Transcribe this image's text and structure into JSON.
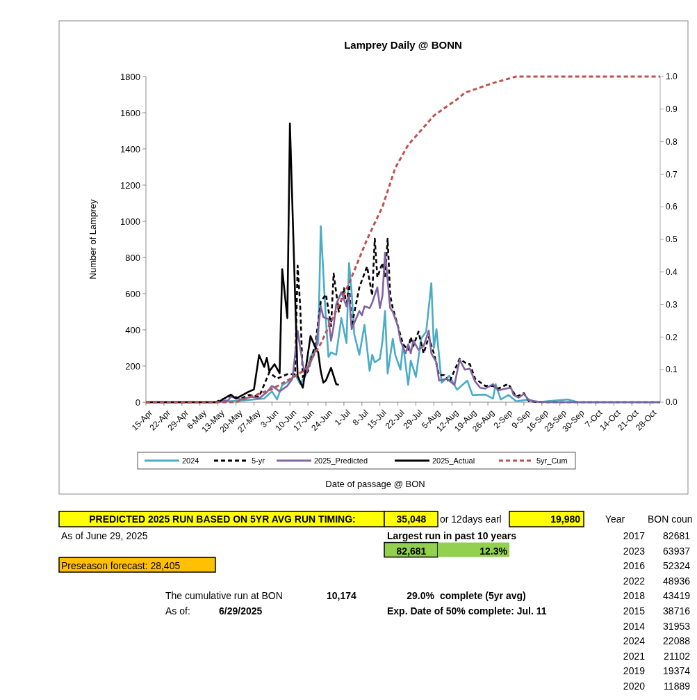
{
  "chart_data": {
    "type": "line",
    "title": "Lamprey Daily @ BONN",
    "xlabel": "Date of passage @ BON",
    "ylabel": "Number of Lamprey",
    "xlim": [
      "--04-15",
      "--11-01"
    ],
    "xticks": [
      {
        "value": "--04-15",
        "label": "15-Apr"
      },
      {
        "value": "--04-22",
        "label": "22-Apr"
      },
      {
        "value": "--04-29",
        "label": "29-Apr"
      },
      {
        "value": "--05-06",
        "label": "6-May"
      },
      {
        "value": "--05-13",
        "label": "13-May"
      },
      {
        "value": "--05-20",
        "label": "20-May"
      },
      {
        "value": "--05-27",
        "label": "27-May"
      },
      {
        "value": "--06-03",
        "label": "3-Jun"
      },
      {
        "value": "--06-10",
        "label": "10-Jun"
      },
      {
        "value": "--06-17",
        "label": "17-Jun"
      },
      {
        "value": "--06-24",
        "label": "24-Jun"
      },
      {
        "value": "--07-01",
        "label": "1-Jul"
      },
      {
        "value": "--07-08",
        "label": "8-Jul"
      },
      {
        "value": "--07-15",
        "label": "15-Jul"
      },
      {
        "value": "--07-22",
        "label": "22-Jul"
      },
      {
        "value": "--07-29",
        "label": "29-Jul"
      },
      {
        "value": "--08-05",
        "label": "5-Aug"
      },
      {
        "value": "--08-12",
        "label": "12-Aug"
      },
      {
        "value": "--08-19",
        "label": "19-Aug"
      },
      {
        "value": "--08-26",
        "label": "26-Aug"
      },
      {
        "value": "--09-02",
        "label": "2-Sep"
      },
      {
        "value": "--09-09",
        "label": "9-Sep"
      },
      {
        "value": "--09-16",
        "label": "16-Sep"
      },
      {
        "value": "--09-23",
        "label": "23-Sep"
      },
      {
        "value": "--09-30",
        "label": "30-Sep"
      },
      {
        "value": "--10-07",
        "label": "7-Oct"
      },
      {
        "value": "--10-14",
        "label": "14-Oct"
      },
      {
        "value": "--10-21",
        "label": "21-Oct"
      },
      {
        "value": "--10-28",
        "label": "28-Oct"
      }
    ],
    "ylim": [
      0,
      1800
    ],
    "yticks": [
      0,
      200,
      400,
      600,
      800,
      1000,
      1200,
      1400,
      1600,
      1800
    ],
    "y2lim": [
      0,
      1
    ],
    "y2ticks": [
      {
        "value": 0,
        "label": "0.0"
      },
      0.1,
      0.2,
      0.3,
      0.4,
      0.5,
      0.6,
      0.7,
      0.8,
      0.9,
      {
        "value": 1,
        "label": "1.0"
      }
    ],
    "grid": false,
    "legend": "bottom",
    "series": [
      {
        "name": "2024",
        "color": "#4bacc6",
        "line_style": "solid",
        "x": [
          "--04-15",
          "--05-12",
          "--05-23",
          "--05-31",
          "--06-03",
          "--06-05",
          "--06-07",
          "--06-10",
          "--06-12",
          "--06-14",
          "--06-16",
          "--06-18",
          "--06-21",
          "--06-22",
          "--06-24",
          "--06-25",
          "--06-26",
          "--06-28",
          "--06-30",
          "--07-02",
          "--07-03",
          "--07-04",
          "--07-05",
          "--07-07",
          "--07-09",
          "--07-11",
          "--07-12",
          "--07-13",
          "--07-15",
          "--07-16",
          "--07-17",
          "--07-18",
          "--07-20",
          "--07-21",
          "--07-23",
          "--07-24",
          "--07-26",
          "--07-27",
          "--07-29",
          "--07-31",
          "--08-02",
          "--08-04",
          "--08-05",
          "--08-06",
          "--08-08",
          "--08-11",
          "--08-14",
          "--08-18",
          "--08-20",
          "--08-25",
          "--08-28",
          "--08-29",
          "--08-31",
          "--09-03",
          "--09-06",
          "--09-11",
          "--09-14",
          "--09-26",
          "--09-30",
          "--11-01"
        ],
        "values": [
          0,
          0,
          10,
          20,
          60,
          15,
          95,
          120,
          155,
          100,
          146,
          250,
          327,
          973,
          454,
          250,
          275,
          262,
          465,
          327,
          769,
          608,
          377,
          262,
          427,
          173,
          262,
          220,
          240,
          338,
          504,
          158,
          350,
          260,
          180,
          320,
          96,
          230,
          140,
          350,
          390,
          658,
          300,
          404,
          108,
          146,
          69,
          119,
          40,
          42,
          20,
          100,
          15,
          40,
          5,
          15,
          0,
          15,
          0,
          0
        ]
      },
      {
        "name": "5-yr",
        "color": "#000000",
        "line_style": "dashed",
        "x": [
          "--04-15",
          "--05-12",
          "--05-18",
          "--05-22",
          "--05-25",
          "--05-29",
          "--06-02",
          "--06-05",
          "--06-09",
          "--06-12",
          "--06-13",
          "--06-14",
          "--06-15",
          "--06-17",
          "--06-20",
          "--06-22",
          "--06-24",
          "--06-26",
          "--06-27",
          "--06-29",
          "--07-01",
          "--07-02",
          "--07-03",
          "--07-04",
          "--07-07",
          "--07-10",
          "--07-12",
          "--07-13",
          "--07-14",
          "--07-16",
          "--07-17",
          "--07-18",
          "--07-19",
          "--07-20",
          "--07-22",
          "--07-24",
          "--07-26",
          "--07-27",
          "--07-28",
          "--07-30",
          "--08-01",
          "--08-03",
          "--08-05",
          "--08-07",
          "--08-09",
          "--08-11",
          "--08-15",
          "--08-18",
          "--08-19",
          "--08-21",
          "--08-25",
          "--08-28",
          "--08-30",
          "--09-02",
          "--09-03",
          "--09-06",
          "--09-09",
          "--09-11",
          "--09-16",
          "--11-01"
        ],
        "values": [
          0,
          0,
          35,
          20,
          40,
          30,
          165,
          130,
          155,
          155,
          755,
          530,
          140,
          170,
          330,
          556,
          596,
          420,
          711,
          500,
          630,
          530,
          650,
          420,
          635,
          750,
          590,
          904,
          690,
          770,
          690,
          904,
          590,
          520,
          420,
          320,
          290,
          360,
          310,
          390,
          270,
          360,
          270,
          150,
          150,
          110,
          240,
          210,
          210,
          130,
          90,
          90,
          75,
          95,
          100,
          30,
          50,
          5,
          0,
          0
        ]
      },
      {
        "name": "2025_Predicted",
        "color": "#8064a2",
        "line_style": "solid",
        "x": [
          "--04-15",
          "--05-12",
          "--05-17",
          "--05-18",
          "--05-22",
          "--05-26",
          "--05-29",
          "--06-01",
          "--06-03",
          "--06-06",
          "--06-09",
          "--06-11",
          "--06-13",
          "--06-15",
          "--06-16",
          "--06-20",
          "--06-22",
          "--06-23",
          "--06-25",
          "--06-26",
          "--06-27",
          "--06-28",
          "--06-30",
          "--07-02",
          "--07-03",
          "--07-04",
          "--07-07",
          "--07-08",
          "--07-09",
          "--07-11",
          "--07-12",
          "--07-14",
          "--07-15",
          "--07-16",
          "--07-17",
          "--07-19",
          "--07-20",
          "--07-22",
          "--07-23",
          "--07-25",
          "--07-26",
          "--07-27",
          "--07-28",
          "--07-30",
          "--08-01",
          "--08-03",
          "--08-04",
          "--08-06",
          "--08-07",
          "--08-10",
          "--08-13",
          "--08-15",
          "--08-17",
          "--08-19",
          "--08-21",
          "--08-23",
          "--08-25",
          "--08-28",
          "--08-30",
          "--09-02",
          "--09-04",
          "--09-05",
          "--09-07",
          "--09-09",
          "--09-11",
          "--09-16",
          "--11-01"
        ],
        "values": [
          0,
          0,
          10,
          30,
          15,
          30,
          20,
          55,
          90,
          60,
          90,
          130,
          395,
          210,
          150,
          288,
          530,
          470,
          460,
          340,
          420,
          540,
          608,
          530,
          594,
          404,
          504,
          480,
          530,
          520,
          550,
          635,
          520,
          590,
          827,
          520,
          500,
          420,
          338,
          270,
          320,
          270,
          340,
          290,
          310,
          396,
          270,
          220,
          119,
          130,
          95,
          235,
          180,
          185,
          115,
          80,
          75,
          100,
          65,
          75,
          80,
          40,
          25,
          45,
          10,
          0,
          0
        ]
      },
      {
        "name": "2025_Actual",
        "color": "#000000",
        "line_style": "solid",
        "x": [
          "--04-15",
          "--05-13",
          "--05-18",
          "--05-20",
          "--05-22",
          "--05-25",
          "--05-27",
          "--05-29",
          "--05-31",
          "--06-01",
          "--06-02",
          "--06-04",
          "--06-06",
          "--06-07",
          "--06-09",
          "--06-10",
          "--06-12",
          "--06-13",
          "--06-15",
          "--06-16",
          "--06-18",
          "--06-20",
          "--06-21",
          "--06-22",
          "--06-23",
          "--06-24",
          "--06-26",
          "--06-28",
          "--06-29"
        ],
        "values": [
          0,
          0,
          42,
          20,
          35,
          58,
          70,
          260,
          195,
          245,
          170,
          210,
          160,
          735,
          465,
          1540,
          595,
          145,
          80,
          170,
          365,
          300,
          275,
          170,
          108,
          120,
          190,
          100,
          95
        ]
      },
      {
        "name": "5yr_Cum",
        "color": "#c0504d",
        "line_style": "dashed",
        "axis": "y2",
        "x": [
          "--04-15",
          "--05-20",
          "--06-03",
          "--06-12",
          "--06-16",
          "--06-22",
          "--07-03",
          "--07-10",
          "--07-16",
          "--07-21",
          "--07-26",
          "--08-05",
          "--08-14",
          "--08-17",
          "--08-28",
          "--09-06",
          "--11-01"
        ],
        "values": [
          0,
          0,
          0.04,
          0.08,
          0.1,
          0.18,
          0.365,
          0.5,
          0.6,
          0.72,
          0.79,
          0.88,
          0.93,
          0.95,
          0.98,
          1,
          1
        ]
      }
    ],
    "annotations": [
      "PREDICTED 2025 RUN BASED ON 5YR AVG RUN TIMING:",
      "35,048",
      "or 12days earl",
      "19,980",
      "Year",
      "BON coun",
      "As of June 29, 2025",
      "Largest run in past 10 years",
      "82,681",
      "12.3%",
      "Preseason forecast: 28,405",
      "The cumulative run at BON",
      "10,174",
      "29.0%",
      "complete (5yr avg)",
      "As of:",
      "6/29/2025",
      "Exp. Date of 50% complete: Jul. 11",
      "2017",
      "82681",
      "2023",
      "63937",
      "2016",
      "52324",
      "2022",
      "48936",
      "2018",
      "43419",
      "2015",
      "38716",
      "2014",
      "31953",
      "2024",
      "22088",
      "2021",
      "21102",
      "2019",
      "19374",
      "2020",
      "11889"
    ]
  }
}
